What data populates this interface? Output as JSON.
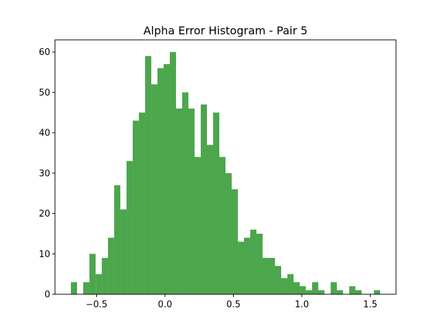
{
  "chart_data": {
    "type": "histogram",
    "title": "Alpha Error Histogram - Pair 5",
    "bins": [
      -0.688,
      -0.6428,
      -0.5976,
      -0.5524,
      -0.5072,
      -0.462,
      -0.4168,
      -0.3716,
      -0.3264,
      -0.2812,
      -0.236,
      -0.1908,
      -0.1456,
      -0.1004,
      -0.0552,
      -0.01,
      0.0352,
      0.0804,
      0.1256,
      0.1708,
      0.216,
      0.2612,
      0.3064,
      0.3516,
      0.3968,
      0.442,
      0.4872,
      0.5324,
      0.5776,
      0.6228,
      0.668,
      0.7132,
      0.7584,
      0.8036,
      0.8488,
      0.894,
      0.9392,
      0.9844,
      1.0296,
      1.0748,
      1.12,
      1.1652,
      1.2104,
      1.2556,
      1.3008,
      1.346,
      1.3912,
      1.4364,
      1.4816,
      1.5268,
      1.572
    ],
    "values": [
      3,
      0,
      3,
      10,
      5,
      9,
      14,
      27,
      21,
      33,
      43,
      45,
      59,
      52,
      56,
      57,
      60,
      46,
      50,
      46,
      34,
      47,
      37,
      45,
      34,
      30,
      26,
      13,
      14,
      16,
      15,
      9,
      9,
      7,
      4,
      5,
      3,
      2,
      1,
      3,
      1,
      0,
      3,
      1,
      0,
      2,
      1,
      0,
      0,
      1
    ],
    "color": "#4ca64c",
    "xlim": [
      -0.804,
      1.688
    ],
    "xticks": [
      {
        "value": -0.5,
        "label": "−0.5"
      },
      {
        "value": 0,
        "label": "0.0"
      },
      0.5,
      {
        "value": 1,
        "label": "1.0"
      },
      1.5
    ],
    "ylim": [
      0,
      63
    ],
    "yticks": [
      0,
      10,
      20,
      30,
      40,
      50,
      60
    ]
  }
}
